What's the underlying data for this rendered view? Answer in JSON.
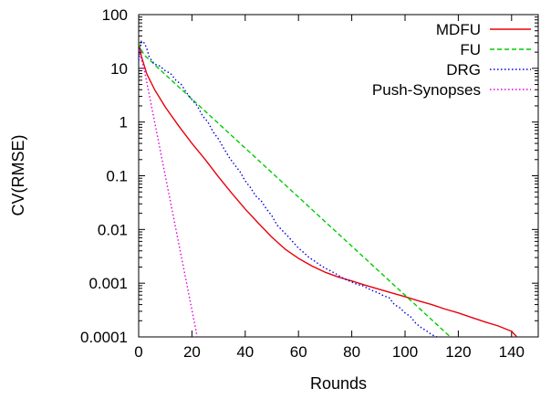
{
  "chart_data": {
    "type": "line",
    "title": "",
    "xlabel": "Rounds",
    "ylabel": "CV(RMSE)",
    "xlim": [
      0,
      150
    ],
    "ylim": [
      0.0001,
      100
    ],
    "yscale": "log",
    "grid": false,
    "legend_position": "top-right",
    "x_ticks": [
      0,
      20,
      40,
      60,
      80,
      100,
      120,
      140
    ],
    "x_tick_labels": [
      "0",
      "20",
      "40",
      "60",
      "80",
      "100",
      "120",
      "140"
    ],
    "y_ticks": [
      0.0001,
      0.001,
      0.01,
      0.1,
      1,
      10,
      100
    ],
    "y_tick_labels": [
      "0.0001",
      "0.001",
      "0.01",
      "0.1",
      "1",
      "10",
      "100"
    ],
    "series": [
      {
        "name": "MDFU",
        "color": "#e8000b",
        "dash": "solid",
        "x": [
          0,
          1,
          3,
          6,
          10,
          15,
          20,
          25,
          30,
          35,
          40,
          45,
          50,
          55,
          60,
          65,
          70,
          75,
          80,
          85,
          90,
          95,
          100,
          105,
          110,
          115,
          120,
          125,
          130,
          135,
          140,
          142
        ],
        "y": [
          30,
          17,
          8,
          4,
          1.9,
          0.85,
          0.4,
          0.2,
          0.095,
          0.047,
          0.024,
          0.013,
          0.0072,
          0.0043,
          0.0029,
          0.0021,
          0.0016,
          0.0013,
          0.0011,
          0.00092,
          0.00078,
          0.00066,
          0.00056,
          0.00047,
          0.0004,
          0.00033,
          0.00028,
          0.00023,
          0.00019,
          0.00016,
          0.000127,
          0.0001
        ]
      },
      {
        "name": "FU",
        "color": "#00cc00",
        "dash": "dashed",
        "x": [
          0,
          1,
          2,
          3,
          117
        ],
        "y": [
          30,
          22,
          18,
          16,
          0.0001
        ]
      },
      {
        "name": "DRG",
        "color": "#0000dd",
        "dash": "dotted",
        "x": [
          0,
          1,
          2,
          3,
          4,
          6,
          8,
          10,
          12,
          14,
          16,
          18,
          20,
          22,
          24,
          26,
          28,
          30,
          32,
          34,
          36,
          38,
          40,
          42,
          44,
          46,
          48,
          50,
          52,
          54,
          56,
          58,
          60,
          62,
          64,
          66,
          68,
          70,
          72,
          74,
          76,
          78,
          80,
          82,
          84,
          86,
          88,
          90,
          92,
          94,
          96,
          98,
          100,
          102,
          104,
          106,
          108,
          110,
          112
        ],
        "y": [
          14,
          32,
          30,
          24,
          16,
          12,
          11,
          9,
          8,
          6,
          5,
          3.5,
          2.6,
          2.0,
          1.3,
          1.0,
          0.65,
          0.48,
          0.32,
          0.22,
          0.16,
          0.12,
          0.08,
          0.06,
          0.042,
          0.034,
          0.024,
          0.018,
          0.012,
          0.0095,
          0.0075,
          0.0058,
          0.0045,
          0.0037,
          0.003,
          0.0026,
          0.0022,
          0.0019,
          0.0017,
          0.0015,
          0.0013,
          0.00115,
          0.00105,
          0.00095,
          0.0009,
          0.0008,
          0.00072,
          0.00066,
          0.00058,
          0.00054,
          0.0004,
          0.00035,
          0.00028,
          0.00024,
          0.00018,
          0.00015,
          0.00013,
          0.00011,
          0.0001
        ]
      },
      {
        "name": "Push-Synopses",
        "color": "#e000e0",
        "dash": "dotted",
        "x": [
          0,
          2,
          22
        ],
        "y": [
          22,
          10,
          0.0001
        ]
      }
    ]
  }
}
